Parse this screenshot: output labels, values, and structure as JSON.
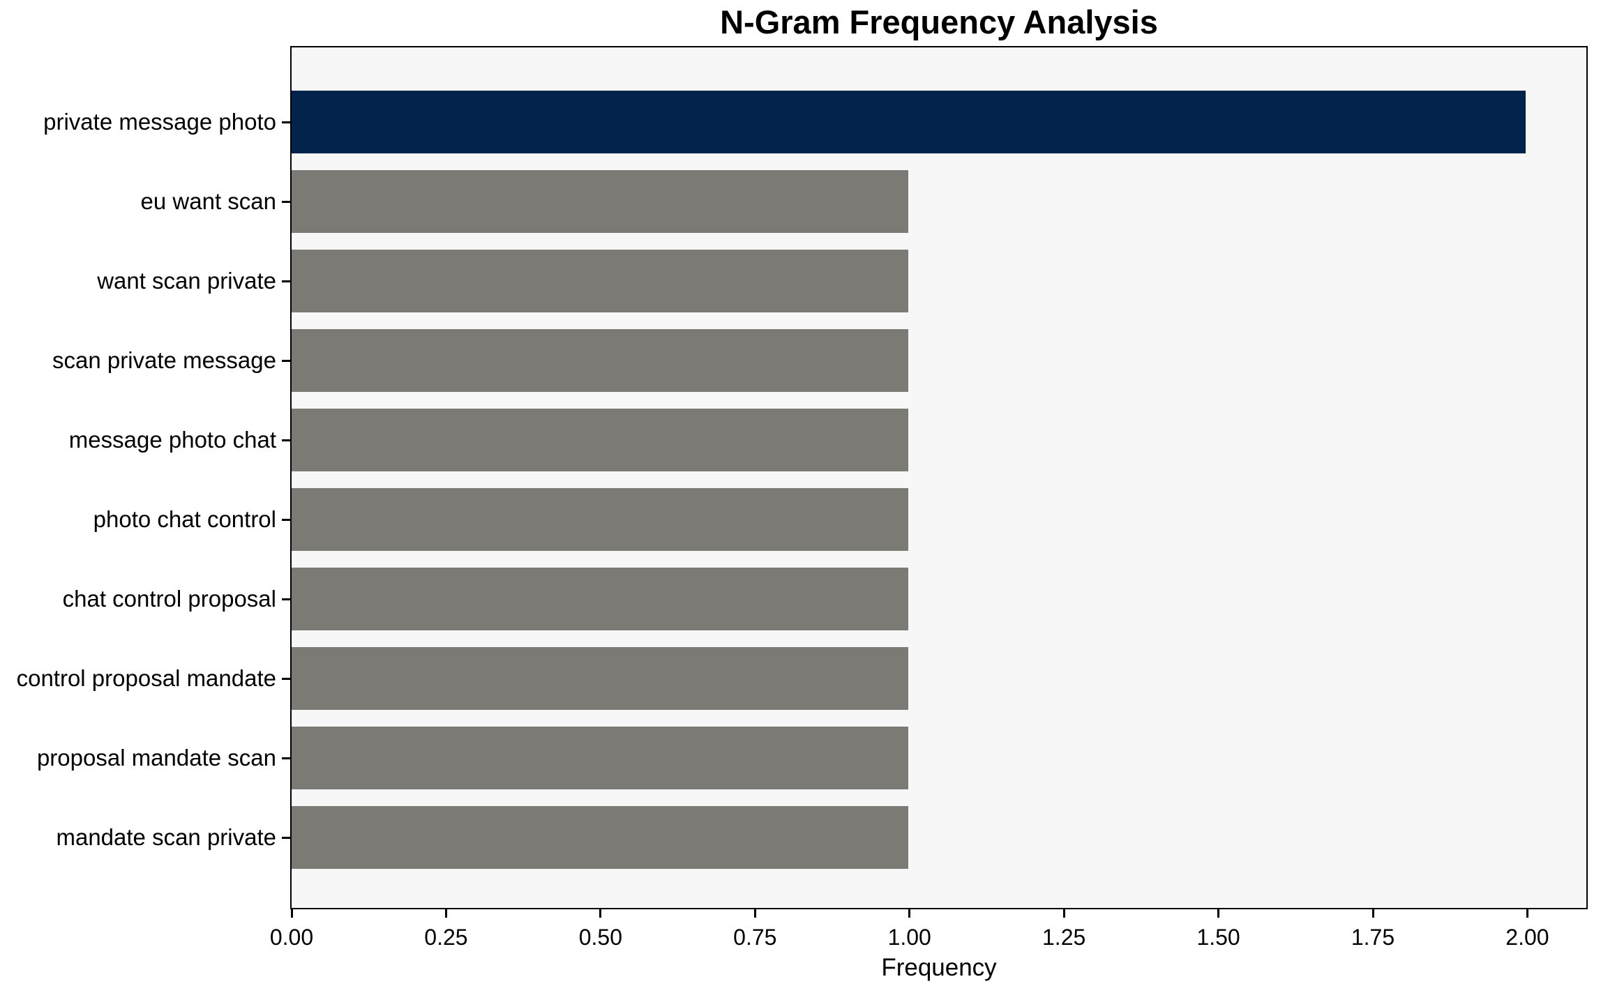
{
  "page": {
    "background_color": "#ffffff"
  },
  "chart_data": {
    "type": "bar",
    "orientation": "horizontal",
    "title": "N-Gram Frequency Analysis",
    "xlabel": "Frequency",
    "ylabel": "",
    "categories": [
      "private message photo",
      "eu want scan",
      "want scan private",
      "scan private message",
      "message photo chat",
      "photo chat control",
      "chat control proposal",
      "control proposal mandate",
      "proposal mandate scan",
      "mandate scan private"
    ],
    "values": [
      2,
      1,
      1,
      1,
      1,
      1,
      1,
      1,
      1,
      1
    ],
    "bar_colors": [
      "#03234c",
      "#7b7a75",
      "#7b7a75",
      "#7b7a75",
      "#7b7a75",
      "#7b7a75",
      "#7b7a75",
      "#7b7a75",
      "#7b7a75",
      "#7b7a75"
    ],
    "highlight_color": "#03234c",
    "default_bar_color": "#7b7a75",
    "xtick_labels": [
      "0.00",
      "0.25",
      "0.50",
      "0.75",
      "1.00",
      "1.25",
      "1.50",
      "1.75",
      "2.00"
    ],
    "xtick_values": [
      0,
      0.25,
      0.5,
      0.75,
      1.0,
      1.25,
      1.5,
      1.75,
      2.0
    ],
    "xlim": [
      0,
      2.1
    ],
    "grid": false,
    "legend": null,
    "plot_background": "#f7f7f7",
    "spine_color": "#000000",
    "text_color": "#000000"
  }
}
